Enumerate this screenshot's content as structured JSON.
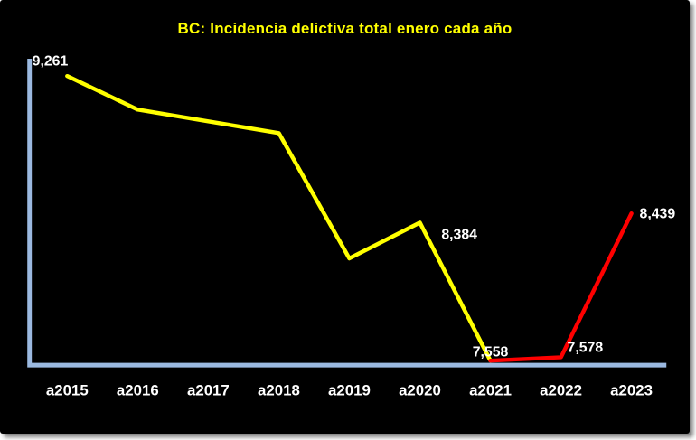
{
  "chart_data": {
    "type": "line",
    "title": "BC: Incidencia delictiva total enero cada año",
    "categories": [
      "a2015",
      "a2016",
      "a2017",
      "a2018",
      "a2019",
      "a2020",
      "a2021",
      "a2022",
      "a2023"
    ],
    "series": [
      {
        "name": "Incidencia delictiva total enero",
        "values": [
          9261,
          9060,
          8990,
          8920,
          8170,
          8384,
          7558,
          7578,
          8439
        ],
        "color": "#FFFF00",
        "highlight_from_category": "a2021",
        "highlight_color": "#FF0000"
      }
    ],
    "data_labels": [
      {
        "category": "a2015",
        "text": "9,261"
      },
      {
        "category": "a2020",
        "text": "8,384"
      },
      {
        "category": "a2021",
        "text": "7,558"
      },
      {
        "category": "a2022",
        "text": "7,578"
      },
      {
        "category": "a2023",
        "text": "8,439"
      }
    ],
    "ylim": [
      7400,
      9450
    ],
    "grid": false,
    "legend": "none",
    "colors": {
      "background": "#000000",
      "axis": "#9BB9E0",
      "title": "#FFFF00",
      "label_text": "#FFFFFF"
    }
  }
}
